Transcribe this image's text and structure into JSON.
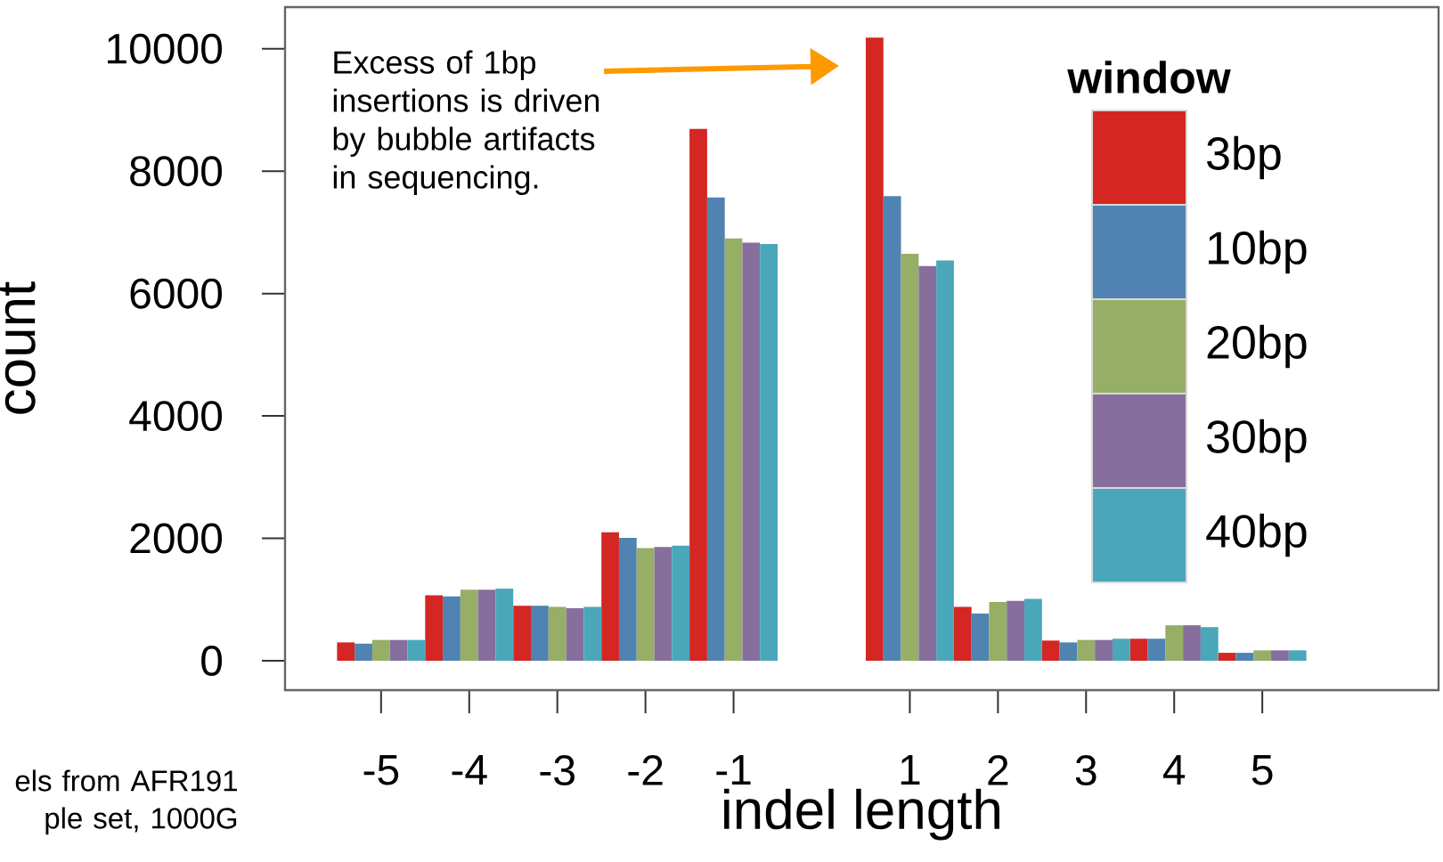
{
  "chart_data": {
    "type": "bar",
    "xlabel": "indel length",
    "ylabel": "count",
    "legend_title": "window",
    "legend": "top right",
    "categories": [
      "-5",
      "-4",
      "-3",
      "-2",
      "-1",
      null,
      "1",
      "2",
      "3",
      "4",
      "5"
    ],
    "ylim": [
      -480,
      10680
    ],
    "yticks": [
      0,
      2000,
      4000,
      6000,
      8000,
      10000
    ],
    "series": [
      {
        "name": "3bp",
        "color": "#d42622",
        "values": [
          300,
          1070,
          900,
          2100,
          8690,
          null,
          10180,
          880,
          330,
          360,
          130
        ]
      },
      {
        "name": "10bp",
        "color": "#5083b2",
        "values": [
          280,
          1050,
          900,
          2010,
          7570,
          null,
          7590,
          770,
          300,
          360,
          130
        ]
      },
      {
        "name": "20bp",
        "color": "#97ae67",
        "values": [
          340,
          1160,
          880,
          1840,
          6900,
          null,
          6650,
          960,
          340,
          580,
          170
        ]
      },
      {
        "name": "30bp",
        "color": "#866f9c",
        "values": [
          340,
          1160,
          860,
          1860,
          6830,
          null,
          6450,
          980,
          340,
          580,
          170
        ]
      },
      {
        "name": "40bp",
        "color": "#4aa7ba",
        "values": [
          340,
          1180,
          880,
          1880,
          6810,
          null,
          6540,
          1010,
          360,
          550,
          170
        ]
      }
    ],
    "annotations": [
      "Excess of 1bp insertions is driven by bubble artifacts in sequencing.",
      "els from AFR191 ple set, 1000G"
    ]
  }
}
